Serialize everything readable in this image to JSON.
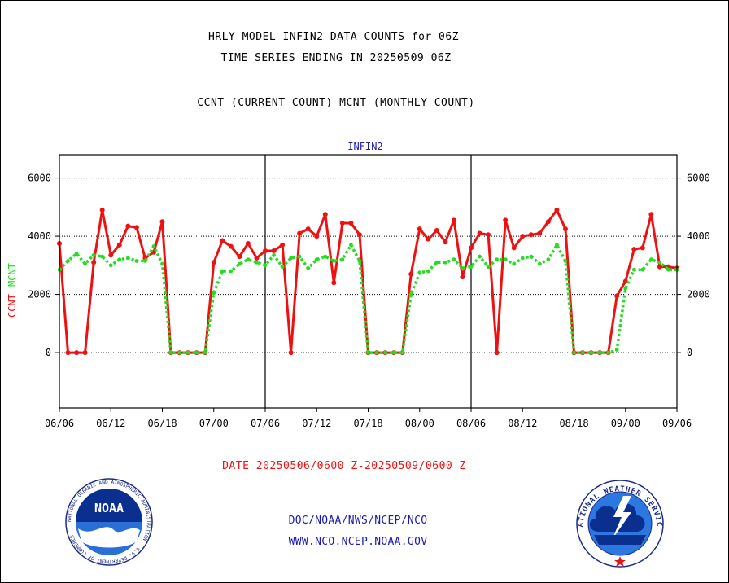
{
  "header": {
    "line1": "HRLY MODEL INFIN2 DATA COUNTS for 06Z",
    "line2": "TIME SERIES ENDING IN 20250509 06Z",
    "line3": "CCNT (CURRENT COUNT) MCNT (MONTHLY COUNT)"
  },
  "footer": {
    "date_range": "DATE 20250506/0600 Z-20250509/0600 Z",
    "org": "DOC/NOAA/NWS/NCEP/NCO",
    "url": "WWW.NCO.NCEP.NOAA.GOV"
  },
  "logos": {
    "left": {
      "center_text": "NOAA",
      "ring_text": "NATIONAL OCEANIC AND ATMOSPHERIC ADMINISTRATION · U.S. DEPARTMENT OF COMMERCE",
      "icon": "noaa-logo"
    },
    "right": {
      "ring_text": "NATIONAL WEATHER SERVICE",
      "icon": "nws-logo"
    }
  },
  "colors": {
    "ccnt": "#ee1111",
    "mcnt": "#22dd22",
    "label": "#1a1ab4"
  },
  "chart_data": {
    "type": "line",
    "title": "INFIN2",
    "ylabel_parts": [
      "CCNT",
      "MCNT"
    ],
    "ylim": [
      -1900,
      6800
    ],
    "yticks": [
      0,
      2000,
      4000,
      6000
    ],
    "xlim": [
      0,
      72
    ],
    "xtick_labels": [
      "06/06",
      "06/12",
      "06/18",
      "07/00",
      "07/06",
      "07/12",
      "07/18",
      "08/00",
      "08/06",
      "08/12",
      "08/18",
      "09/00",
      "09/06"
    ],
    "grid": "horizontal dotted at y ticks; vertical solid at day boundaries",
    "series": [
      {
        "name": "CCNT",
        "x": [
          0,
          1,
          2,
          3,
          4,
          5,
          6,
          7,
          8,
          9,
          10,
          11,
          12,
          13,
          14,
          15,
          16,
          17,
          18,
          19,
          20,
          21,
          22,
          23,
          24,
          25,
          26,
          27,
          28,
          29,
          30,
          31,
          32,
          33,
          34,
          35,
          36,
          37,
          38,
          39,
          40,
          41,
          42,
          43,
          44,
          45,
          46,
          47,
          48,
          49,
          50,
          51,
          52,
          53,
          54,
          55,
          56,
          57,
          58,
          59,
          60,
          61,
          62,
          63,
          64,
          65,
          66,
          67,
          68,
          69,
          70,
          71,
          72
        ],
        "values": [
          3750,
          0,
          0,
          0,
          3100,
          4900,
          3350,
          3700,
          4350,
          4300,
          3250,
          3450,
          4500,
          0,
          0,
          0,
          0,
          0,
          3100,
          3850,
          3650,
          3300,
          3750,
          3250,
          3500,
          3500,
          3700,
          0,
          4100,
          4250,
          4000,
          4750,
          2400,
          4450,
          4450,
          4050,
          0,
          0,
          0,
          0,
          0,
          2700,
          4250,
          3900,
          4200,
          3800,
          4550,
          2600,
          3600,
          4100,
          4050,
          0,
          4550,
          3600,
          4000,
          4050,
          4100,
          4500,
          4900,
          4250,
          0,
          0,
          0,
          0,
          0,
          1950,
          2450,
          3550,
          3600,
          4750,
          2950,
          2950,
          2900
        ]
      },
      {
        "name": "MCNT",
        "x": [
          0,
          1,
          2,
          3,
          4,
          5,
          6,
          7,
          8,
          9,
          10,
          11,
          12,
          13,
          14,
          15,
          16,
          17,
          18,
          19,
          20,
          21,
          22,
          23,
          24,
          25,
          26,
          27,
          28,
          29,
          30,
          31,
          32,
          33,
          34,
          35,
          36,
          37,
          38,
          39,
          40,
          41,
          42,
          43,
          44,
          45,
          46,
          47,
          48,
          49,
          50,
          51,
          52,
          53,
          54,
          55,
          56,
          57,
          58,
          59,
          60,
          61,
          62,
          63,
          64,
          65,
          66,
          67,
          68,
          69,
          70,
          71,
          72
        ],
        "values": [
          2850,
          3150,
          3400,
          3050,
          3350,
          3300,
          3000,
          3200,
          3250,
          3150,
          3150,
          3650,
          3050,
          0,
          0,
          0,
          0,
          0,
          2050,
          2800,
          2800,
          3050,
          3200,
          3100,
          3000,
          3350,
          2950,
          3250,
          3300,
          2900,
          3200,
          3300,
          3150,
          3200,
          3700,
          3150,
          0,
          0,
          0,
          0,
          0,
          2000,
          2750,
          2800,
          3100,
          3100,
          3200,
          2900,
          2950,
          3300,
          2950,
          3200,
          3200,
          3050,
          3250,
          3300,
          3050,
          3200,
          3700,
          3150,
          0,
          0,
          0,
          0,
          0,
          100,
          2200,
          2850,
          2850,
          3200,
          3100,
          2850,
          2850
        ]
      }
    ]
  }
}
